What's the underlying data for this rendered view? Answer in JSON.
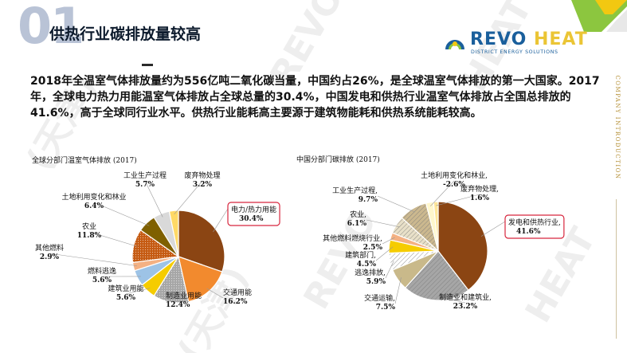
{
  "header": {
    "number": "01",
    "title": "供热行业碳排放量较高"
  },
  "logo": {
    "brand_part1": "REVO",
    "brand_part2": "HEAT",
    "subtitle": "DISTRICT ENERGY SOLUTIONS"
  },
  "sidebar": {
    "text": "COMPANY INTRODUCTION"
  },
  "body": {
    "paragraph": "2018年全温室气体排放量约为556亿吨二氧化碳当量，中国约占26%，是全球温室气体排放的第一大国家。2017年，全球电力热力用能温室气体排放占全球总量的30.4%，中国发电和供热行业温室气体排放占全国总排放的41.6%，高于全球同行业水平。供热行业能耗高主要源于建筑物能耗和供热系统能耗较高。"
  },
  "watermark": {
    "parts": [
      "REVO",
      "HEAT",
      "(天津)",
      "REVO",
      "HEAT",
      "(天津)"
    ]
  },
  "colors": {
    "accent_green": "#8cc63f",
    "accent_yellow": "#f2c811",
    "brand_blue": "#1a5f9c",
    "highlight_red": "#d7263d"
  },
  "chart_data": [
    {
      "type": "pie",
      "title": "全球分部门温室气体排放 (2017)",
      "slices": [
        {
          "label": "电力/热力用能",
          "value": 30.4,
          "value_text": "30.4%",
          "color": "#8b4513",
          "highlight": true
        },
        {
          "label": "交通用能",
          "value": 16.2,
          "value_text": "16.2%",
          "color": "#f28a2e"
        },
        {
          "label": "制造业用能",
          "value": 12.4,
          "value_text": "12.4%",
          "color": "#a6a6a6"
        },
        {
          "label": "建筑业用能",
          "value": 5.6,
          "value_text": "5.6%",
          "color": "#f5cc00"
        },
        {
          "label": "燃料逃逸",
          "value": 5.6,
          "value_text": "5.6%",
          "color": "#9dc3e6"
        },
        {
          "label": "其他燃料",
          "value": 2.9,
          "value_text": "2.9%",
          "color": "#f4b183"
        },
        {
          "label": "农业",
          "value": 11.8,
          "value_text": "11.8%",
          "color": "#c55a11"
        },
        {
          "label": "土地利用变化和林业",
          "value": 6.4,
          "value_text": "6.4%",
          "color": "#7f6000"
        },
        {
          "label": "工业生产过程",
          "value": 5.7,
          "value_text": "5.7%",
          "color": "#d9d9d9"
        },
        {
          "label": "废弃物处理",
          "value": 3.2,
          "value_text": "3.2%",
          "color": "#ffd966"
        }
      ]
    },
    {
      "type": "pie",
      "title": "中国分部门碳排放 (2017)",
      "slices": [
        {
          "label": "发电和供热行业,",
          "value": 41.6,
          "value_text": "41.6%",
          "color": "#8b4513",
          "highlight": true
        },
        {
          "label": "制造业和建筑业,",
          "value": 23.2,
          "value_text": "23.2%",
          "color": "#a6a6a6"
        },
        {
          "label": "交通运输,",
          "value": 7.5,
          "value_text": "7.5%",
          "color": "#c9b98a"
        },
        {
          "label": "逃逸排放,",
          "value": 5.9,
          "value_text": "5.9%",
          "color": "#ffffff"
        },
        {
          "label": "建筑部门,",
          "value": 4.5,
          "value_text": "4.5%",
          "color": "#f5cc00"
        },
        {
          "label": "其他燃料燃烧行业,",
          "value": 2.5,
          "value_text": "2.5%",
          "color": "#f4b183"
        },
        {
          "label": "农业,",
          "value": 6.1,
          "value_text": "6.1%",
          "color": "#e8e0c8"
        },
        {
          "label": "工业生产过程,",
          "value": 9.7,
          "value_text": "9.7%",
          "color": "#cbb88f"
        },
        {
          "label": "土地利用变化和林业,",
          "value": -2.6,
          "value_text": "-2.6%",
          "color": "#fff7cc"
        },
        {
          "label": "废弃物处理,",
          "value": 1.6,
          "value_text": "1.6%",
          "color": "#ffe699"
        }
      ]
    }
  ]
}
